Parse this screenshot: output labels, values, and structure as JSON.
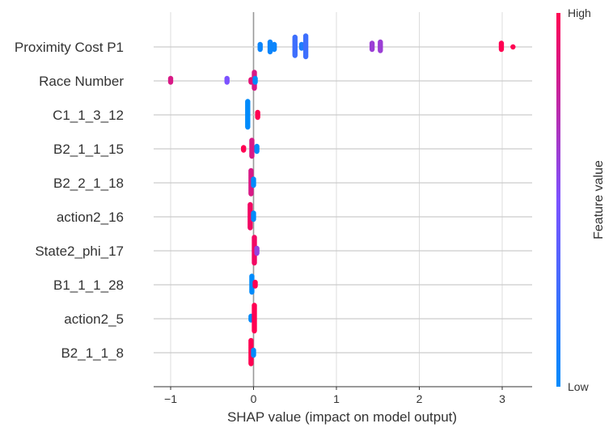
{
  "chart_data": {
    "type": "scatter",
    "subtype": "shap-beeswarm",
    "title": "",
    "xlabel": "SHAP value (impact on model output)",
    "ylabel": "",
    "xlim": [
      -1.2,
      3.35
    ],
    "xticks": [
      -1,
      0,
      1,
      2,
      3
    ],
    "xtick_labels": [
      "−1",
      "0",
      "1",
      "2",
      "3"
    ],
    "grid": true,
    "features": [
      "Proximity Cost P1",
      "Race Number",
      "C1_1_3_12",
      "B2_1_1_15",
      "B2_2_1_18",
      "action2_16",
      "State2_phi_17",
      "B1_1_1_28",
      "action2_5",
      "B2_1_1_8"
    ],
    "colorbar": {
      "label": "Feature value",
      "high_label": "High",
      "low_label": "Low",
      "low_color": "#008bfb",
      "high_color": "#ff0052"
    },
    "points": [
      {
        "f": 0,
        "x": 0.08,
        "c": 0.05,
        "n": 5
      },
      {
        "f": 0,
        "x": 0.2,
        "c": 0.05,
        "n": 9
      },
      {
        "f": 0,
        "x": 0.25,
        "c": 0.05,
        "n": 5
      },
      {
        "f": 0,
        "x": 0.5,
        "c": 0.25,
        "n": 16
      },
      {
        "f": 0,
        "x": 0.58,
        "c": 0.12,
        "n": 4
      },
      {
        "f": 0,
        "x": 0.63,
        "c": 0.25,
        "n": 18
      },
      {
        "f": 0,
        "x": 1.43,
        "c": 0.62,
        "n": 6
      },
      {
        "f": 0,
        "x": 1.53,
        "c": 0.62,
        "n": 8
      },
      {
        "f": 0,
        "x": 2.99,
        "c": 1.0,
        "n": 6
      },
      {
        "f": 0,
        "x": 3.13,
        "c": 1.0,
        "n": 1
      },
      {
        "f": 1,
        "x": -1.0,
        "c": 0.85,
        "n": 4
      },
      {
        "f": 1,
        "x": -0.32,
        "c": 0.5,
        "n": 4
      },
      {
        "f": 1,
        "x": -0.03,
        "c": 0.9,
        "n": 3
      },
      {
        "f": 1,
        "x": 0.01,
        "c": 0.85,
        "n": 14
      },
      {
        "f": 1,
        "x": 0.02,
        "c": 0.0,
        "n": 4
      },
      {
        "f": 2,
        "x": -0.07,
        "c": 0.0,
        "n": 22
      },
      {
        "f": 2,
        "x": 0.05,
        "c": 1.0,
        "n": 5
      },
      {
        "f": 3,
        "x": -0.12,
        "c": 1.0,
        "n": 3
      },
      {
        "f": 3,
        "x": -0.02,
        "c": 0.85,
        "n": 14
      },
      {
        "f": 3,
        "x": 0.04,
        "c": 0.0,
        "n": 5
      },
      {
        "f": 4,
        "x": -0.03,
        "c": 0.85,
        "n": 20
      },
      {
        "f": 4,
        "x": 0.0,
        "c": 0.0,
        "n": 6
      },
      {
        "f": 5,
        "x": -0.04,
        "c": 0.95,
        "n": 20
      },
      {
        "f": 5,
        "x": 0.0,
        "c": 0.0,
        "n": 6
      },
      {
        "f": 6,
        "x": 0.01,
        "c": 0.95,
        "n": 22
      },
      {
        "f": 6,
        "x": 0.04,
        "c": 0.6,
        "n": 5
      },
      {
        "f": 7,
        "x": -0.02,
        "c": 0.0,
        "n": 14
      },
      {
        "f": 7,
        "x": 0.02,
        "c": 1.0,
        "n": 4
      },
      {
        "f": 8,
        "x": -0.03,
        "c": 0.0,
        "n": 4
      },
      {
        "f": 8,
        "x": 0.01,
        "c": 1.0,
        "n": 22
      },
      {
        "f": 9,
        "x": -0.03,
        "c": 1.0,
        "n": 20
      },
      {
        "f": 9,
        "x": 0.0,
        "c": 0.0,
        "n": 5
      }
    ]
  }
}
